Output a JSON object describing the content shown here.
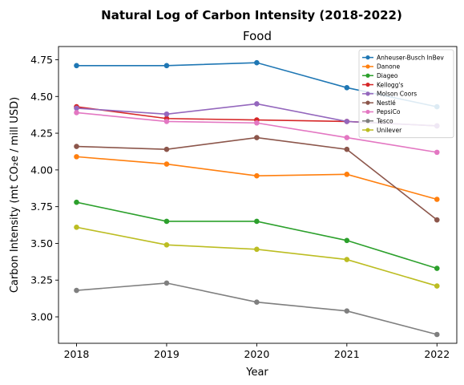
{
  "chart_data": {
    "type": "line",
    "suptitle": "Natural Log of Carbon Intensity (2018-2022)",
    "title": "Food",
    "xlabel": "Year",
    "ylabel": "Carbon Intensity (mt CO₂e / mill USD)",
    "x": [
      2018,
      2019,
      2020,
      2021,
      2022
    ],
    "x_tick_labels": [
      "2018",
      "2019",
      "2020",
      "2021",
      "2022"
    ],
    "ylim": [
      2.82,
      4.84
    ],
    "y_ticks": [
      3.0,
      3.25,
      3.5,
      3.75,
      4.0,
      4.25,
      4.5,
      4.75
    ],
    "y_tick_labels": [
      "3.00",
      "3.25",
      "3.50",
      "3.75",
      "4.00",
      "4.25",
      "4.50",
      "4.75"
    ],
    "grid": false,
    "legend_position": "top-right",
    "series": [
      {
        "name": "Anheuser-Busch InBev",
        "color": "#1f77b4",
        "values": [
          4.71,
          4.71,
          4.73,
          4.56,
          4.43
        ]
      },
      {
        "name": "Danone",
        "color": "#ff7f0e",
        "values": [
          4.09,
          4.04,
          3.96,
          3.97,
          3.8
        ]
      },
      {
        "name": "Diageo",
        "color": "#2ca02c",
        "values": [
          3.78,
          3.65,
          3.65,
          3.52,
          3.33
        ]
      },
      {
        "name": "Kellogg's",
        "color": "#d62728",
        "values": [
          4.43,
          4.35,
          4.34,
          4.33,
          4.3
        ]
      },
      {
        "name": "Molson Coors",
        "color": "#9467bd",
        "values": [
          4.42,
          4.38,
          4.45,
          4.33,
          4.3
        ]
      },
      {
        "name": "Nestlé",
        "color": "#8c564b",
        "values": [
          4.16,
          4.14,
          4.22,
          4.14,
          3.66
        ]
      },
      {
        "name": "PepsiCo",
        "color": "#e377c2",
        "values": [
          4.39,
          4.33,
          4.32,
          4.22,
          4.12
        ]
      },
      {
        "name": "Tesco",
        "color": "#7f7f7f",
        "values": [
          3.18,
          3.23,
          3.1,
          3.04,
          2.88
        ]
      },
      {
        "name": "Unilever",
        "color": "#bcbd22",
        "values": [
          3.61,
          3.49,
          3.46,
          3.39,
          3.21
        ]
      }
    ]
  }
}
